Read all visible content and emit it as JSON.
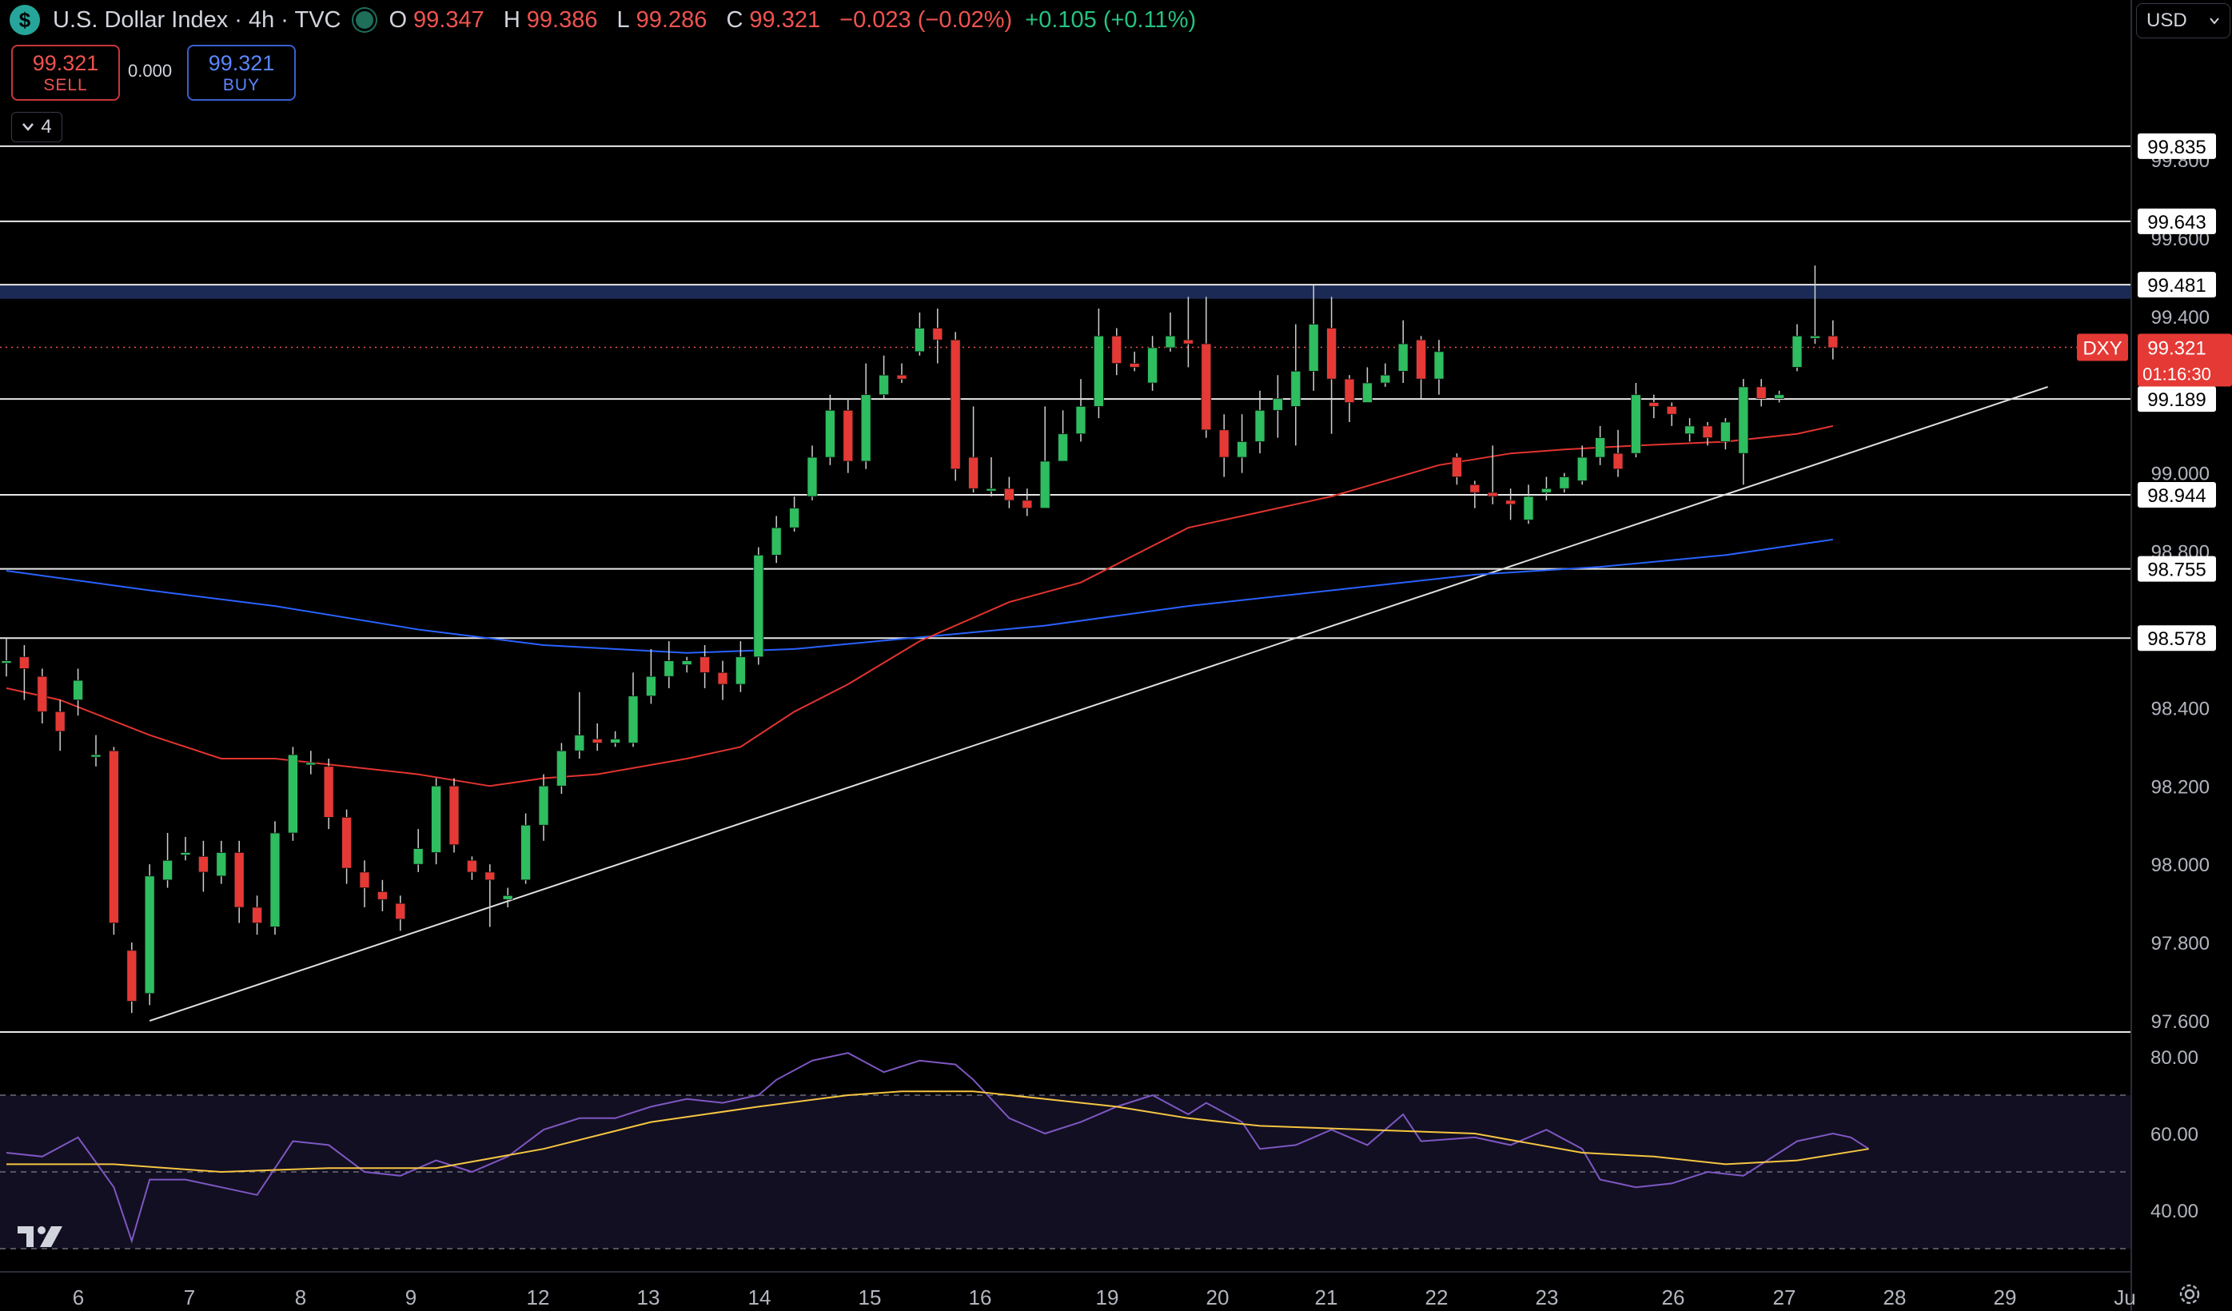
{
  "header": {
    "logo_symbol": "$",
    "title": "U.S. Dollar Index · 4h · TVC",
    "open_label": "O",
    "open": "99.347",
    "high_label": "H",
    "high": "99.386",
    "low_label": "L",
    "low": "99.286",
    "close_label": "C",
    "close": "99.321",
    "change": "−0.023 (−0.02%)",
    "change2": "+0.105 (+0.11%)"
  },
  "trade": {
    "sell_price": "99.321",
    "sell_label": "SELL",
    "spread": "0.000",
    "buy_price": "99.321",
    "buy_label": "BUY"
  },
  "indicators_toggle": {
    "count": "4"
  },
  "currency_select": {
    "value": "USD"
  },
  "price_axis": {
    "ticks": [
      "99.800",
      "99.600",
      "99.400",
      "99.000",
      "98.800",
      "98.400",
      "98.200",
      "98.000",
      "97.800",
      "97.600"
    ],
    "horizontal_line_labels": [
      "99.835",
      "99.643",
      "99.481",
      "99.189",
      "98.944",
      "98.755",
      "98.578"
    ],
    "symbol_tag": "DXY",
    "current_price": "99.321",
    "countdown": "01:16:30"
  },
  "rsi_axis": {
    "ticks": [
      "80.00",
      "60.00",
      "40.00"
    ]
  },
  "time_axis": {
    "labels": [
      "6",
      "7",
      "8",
      "9",
      "12",
      "13",
      "14",
      "15",
      "16",
      "19",
      "20",
      "21",
      "22",
      "23",
      "26",
      "27",
      "28",
      "29",
      "Ju"
    ]
  },
  "colors": {
    "up": "#26a69a",
    "down": "#ef5350",
    "ma_fast": "#e3342f",
    "ma_slow": "#2962ff",
    "rsi": "#7e57c2",
    "rsi_ma": "#f5c542",
    "zone": "#1b2a55"
  },
  "chart_data": {
    "type": "candlestick",
    "price_range": [
      97.6,
      99.9
    ],
    "rsi_range": [
      30,
      85
    ],
    "horizontal_levels": [
      99.835,
      99.643,
      99.481,
      99.189,
      98.944,
      98.755,
      98.578
    ],
    "resistance_zone": [
      99.445,
      99.481
    ],
    "current_price": 99.321,
    "candles": [
      [
        98.52,
        98.52,
        98.58,
        98.48
      ],
      [
        98.53,
        98.5,
        98.56,
        98.42
      ],
      [
        98.48,
        98.39,
        98.5,
        98.36
      ],
      [
        98.39,
        98.34,
        98.42,
        98.29
      ],
      [
        98.42,
        98.47,
        98.5,
        98.38
      ],
      [
        98.28,
        98.28,
        98.33,
        98.25
      ],
      [
        98.29,
        97.85,
        98.3,
        97.82
      ],
      [
        97.78,
        97.65,
        97.8,
        97.62
      ],
      [
        97.67,
        97.97,
        98.0,
        97.64
      ],
      [
        97.96,
        98.01,
        98.08,
        97.94
      ],
      [
        98.03,
        98.03,
        98.07,
        98.01
      ],
      [
        98.02,
        97.98,
        98.06,
        97.93
      ],
      [
        97.97,
        98.03,
        98.06,
        97.95
      ],
      [
        98.03,
        97.89,
        98.06,
        97.85
      ],
      [
        97.89,
        97.85,
        97.92,
        97.82
      ],
      [
        97.84,
        98.08,
        98.11,
        97.82
      ],
      [
        98.08,
        98.28,
        98.3,
        98.06
      ],
      [
        98.26,
        98.26,
        98.29,
        98.23
      ],
      [
        98.25,
        98.12,
        98.27,
        98.09
      ],
      [
        98.12,
        97.99,
        98.14,
        97.95
      ],
      [
        97.98,
        97.94,
        98.01,
        97.89
      ],
      [
        97.93,
        97.91,
        97.96,
        97.88
      ],
      [
        97.9,
        97.86,
        97.92,
        97.83
      ],
      [
        98.0,
        98.04,
        98.09,
        97.98
      ],
      [
        98.03,
        98.2,
        98.22,
        98.0
      ],
      [
        98.2,
        98.05,
        98.22,
        98.03
      ],
      [
        98.01,
        97.98,
        98.02,
        97.96
      ],
      [
        97.98,
        97.96,
        98.0,
        97.84
      ],
      [
        97.91,
        97.92,
        97.94,
        97.89
      ],
      [
        97.96,
        98.1,
        98.13,
        97.95
      ],
      [
        98.1,
        98.2,
        98.23,
        98.06
      ],
      [
        98.2,
        98.29,
        98.31,
        98.18
      ],
      [
        98.29,
        98.33,
        98.44,
        98.27
      ],
      [
        98.32,
        98.31,
        98.36,
        98.29
      ],
      [
        98.31,
        98.32,
        98.34,
        98.3
      ],
      [
        98.31,
        98.43,
        98.49,
        98.3
      ],
      [
        98.43,
        98.48,
        98.55,
        98.41
      ],
      [
        98.48,
        98.52,
        98.57,
        98.45
      ],
      [
        98.51,
        98.52,
        98.53,
        98.49
      ],
      [
        98.53,
        98.49,
        98.56,
        98.45
      ],
      [
        98.49,
        98.46,
        98.52,
        98.42
      ],
      [
        98.46,
        98.53,
        98.57,
        98.44
      ],
      [
        98.53,
        98.79,
        98.81,
        98.51
      ],
      [
        98.79,
        98.86,
        98.89,
        98.77
      ],
      [
        98.86,
        98.91,
        98.94,
        98.85
      ],
      [
        98.94,
        99.04,
        99.07,
        98.93
      ],
      [
        99.04,
        99.16,
        99.2,
        99.02
      ],
      [
        99.16,
        99.03,
        99.19,
        99.0
      ],
      [
        99.03,
        99.2,
        99.28,
        99.01
      ],
      [
        99.2,
        99.25,
        99.3,
        99.19
      ],
      [
        99.25,
        99.24,
        99.28,
        99.23
      ],
      [
        99.31,
        99.37,
        99.41,
        99.3
      ],
      [
        99.37,
        99.34,
        99.42,
        99.28
      ],
      [
        99.34,
        99.01,
        99.36,
        98.98
      ],
      [
        99.04,
        98.96,
        99.17,
        98.95
      ],
      [
        98.96,
        98.96,
        99.04,
        98.94
      ],
      [
        98.96,
        98.93,
        98.99,
        98.91
      ],
      [
        98.93,
        98.91,
        98.96,
        98.89
      ],
      [
        98.91,
        99.03,
        99.17,
        98.93
      ],
      [
        99.03,
        99.1,
        99.16,
        99.04
      ],
      [
        99.1,
        99.17,
        99.24,
        99.08
      ],
      [
        99.17,
        99.35,
        99.42,
        99.14
      ],
      [
        99.35,
        99.28,
        99.37,
        99.25
      ],
      [
        99.28,
        99.27,
        99.31,
        99.26
      ],
      [
        99.23,
        99.32,
        99.35,
        99.21
      ],
      [
        99.32,
        99.35,
        99.41,
        99.31
      ],
      [
        99.34,
        99.33,
        99.45,
        99.27
      ],
      [
        99.33,
        99.11,
        99.45,
        99.09
      ],
      [
        99.11,
        99.04,
        99.15,
        98.99
      ],
      [
        99.04,
        99.08,
        99.15,
        99.0
      ],
      [
        99.08,
        99.16,
        99.21,
        99.05
      ],
      [
        99.16,
        99.19,
        99.25,
        99.09
      ],
      [
        99.17,
        99.26,
        99.38,
        99.07
      ],
      [
        99.26,
        99.38,
        99.48,
        99.21
      ],
      [
        99.37,
        99.24,
        99.45,
        99.1
      ],
      [
        99.24,
        99.18,
        99.25,
        99.13
      ],
      [
        99.18,
        99.23,
        99.27,
        99.2
      ],
      [
        99.23,
        99.25,
        99.28,
        99.22
      ],
      [
        99.26,
        99.33,
        99.39,
        99.23
      ],
      [
        99.34,
        99.24,
        99.35,
        99.19
      ],
      [
        99.24,
        99.31,
        99.34,
        99.2
      ],
      [
        99.04,
        98.99,
        99.05,
        98.97
      ],
      [
        98.97,
        98.95,
        98.98,
        98.91
      ],
      [
        98.95,
        98.94,
        99.07,
        98.92
      ],
      [
        98.93,
        98.92,
        98.96,
        98.88
      ],
      [
        98.88,
        98.94,
        98.97,
        98.87
      ],
      [
        98.95,
        98.96,
        98.99,
        98.93
      ],
      [
        98.96,
        98.99,
        99.0,
        98.95
      ],
      [
        98.98,
        99.04,
        99.07,
        98.97
      ],
      [
        99.04,
        99.09,
        99.12,
        99.02
      ],
      [
        99.05,
        99.01,
        99.11,
        98.99
      ],
      [
        99.05,
        99.2,
        99.23,
        99.04
      ],
      [
        99.18,
        99.17,
        99.2,
        99.14
      ],
      [
        99.17,
        99.15,
        99.18,
        99.12
      ],
      [
        99.1,
        99.12,
        99.14,
        99.08
      ],
      [
        99.12,
        99.09,
        99.13,
        99.07
      ],
      [
        99.08,
        99.13,
        99.14,
        99.06
      ],
      [
        99.05,
        99.22,
        99.24,
        98.97
      ],
      [
        99.22,
        99.19,
        99.24,
        99.17
      ],
      [
        99.19,
        99.2,
        99.21,
        99.18
      ],
      [
        99.27,
        99.35,
        99.38,
        99.26
      ],
      [
        99.35,
        99.35,
        99.53,
        99.33
      ],
      [
        99.35,
        99.32,
        99.39,
        99.29
      ]
    ],
    "sma_fast": [
      [
        0,
        98.45
      ],
      [
        3,
        98.42
      ],
      [
        8,
        98.33
      ],
      [
        12,
        98.27
      ],
      [
        15,
        98.27
      ],
      [
        19,
        98.25
      ],
      [
        23,
        98.23
      ],
      [
        27,
        98.2
      ],
      [
        30,
        98.22
      ],
      [
        33,
        98.23
      ],
      [
        38,
        98.27
      ],
      [
        41,
        98.3
      ],
      [
        44,
        98.39
      ],
      [
        47,
        98.46
      ],
      [
        51,
        98.57
      ],
      [
        56,
        98.67
      ],
      [
        60,
        98.72
      ],
      [
        63,
        98.79
      ],
      [
        66,
        98.86
      ],
      [
        70,
        98.9
      ],
      [
        74,
        98.94
      ],
      [
        77,
        98.98
      ],
      [
        80,
        99.02
      ],
      [
        84,
        99.05
      ],
      [
        87,
        99.06
      ],
      [
        91,
        99.07
      ],
      [
        96,
        99.08
      ],
      [
        100,
        99.1
      ],
      [
        102,
        99.12
      ]
    ],
    "sma_slow": [
      [
        0,
        98.75
      ],
      [
        8,
        98.7
      ],
      [
        15,
        98.66
      ],
      [
        23,
        98.6
      ],
      [
        30,
        98.56
      ],
      [
        38,
        98.54
      ],
      [
        44,
        98.55
      ],
      [
        51,
        98.58
      ],
      [
        58,
        98.61
      ],
      [
        66,
        98.66
      ],
      [
        74,
        98.7
      ],
      [
        82,
        98.74
      ],
      [
        89,
        98.76
      ],
      [
        96,
        98.79
      ],
      [
        102,
        98.83
      ]
    ],
    "trendline": {
      "from": [
        8,
        97.6
      ],
      "to": [
        114,
        99.22
      ]
    },
    "rsi": [
      [
        0,
        55
      ],
      [
        2,
        54
      ],
      [
        4,
        59
      ],
      [
        6,
        46
      ],
      [
        7,
        32
      ],
      [
        8,
        48
      ],
      [
        10,
        48
      ],
      [
        12,
        46
      ],
      [
        14,
        44
      ],
      [
        16,
        58
      ],
      [
        18,
        57
      ],
      [
        20,
        50
      ],
      [
        22,
        49
      ],
      [
        24,
        53
      ],
      [
        26,
        50
      ],
      [
        28,
        54
      ],
      [
        30,
        61
      ],
      [
        32,
        64
      ],
      [
        34,
        64
      ],
      [
        36,
        67
      ],
      [
        38,
        69
      ],
      [
        40,
        68
      ],
      [
        42,
        70
      ],
      [
        43,
        74
      ],
      [
        45,
        79
      ],
      [
        47,
        81
      ],
      [
        49,
        76
      ],
      [
        51,
        79
      ],
      [
        53,
        78
      ],
      [
        54,
        74
      ],
      [
        56,
        64
      ],
      [
        58,
        60
      ],
      [
        60,
        63
      ],
      [
        62,
        67
      ],
      [
        64,
        70
      ],
      [
        66,
        65
      ],
      [
        67,
        68
      ],
      [
        69,
        63
      ],
      [
        70,
        56
      ],
      [
        72,
        57
      ],
      [
        74,
        61
      ],
      [
        76,
        57
      ],
      [
        78,
        65
      ],
      [
        79,
        58
      ],
      [
        82,
        59
      ],
      [
        84,
        57
      ],
      [
        86,
        61
      ],
      [
        88,
        56
      ],
      [
        89,
        48
      ],
      [
        91,
        46
      ],
      [
        93,
        47
      ],
      [
        95,
        50
      ],
      [
        97,
        49
      ],
      [
        100,
        58
      ],
      [
        102,
        60
      ],
      [
        103,
        59
      ],
      [
        104,
        56
      ]
    ],
    "rsi_ma": [
      [
        0,
        52
      ],
      [
        6,
        52
      ],
      [
        12,
        50
      ],
      [
        18,
        51
      ],
      [
        24,
        51
      ],
      [
        30,
        56
      ],
      [
        36,
        63
      ],
      [
        42,
        67
      ],
      [
        47,
        70
      ],
      [
        50,
        71
      ],
      [
        54,
        71
      ],
      [
        58,
        69
      ],
      [
        62,
        67
      ],
      [
        66,
        64
      ],
      [
        70,
        62
      ],
      [
        76,
        61
      ],
      [
        82,
        60
      ],
      [
        88,
        55
      ],
      [
        92,
        54
      ],
      [
        96,
        52
      ],
      [
        100,
        53
      ],
      [
        104,
        56
      ]
    ],
    "rsi_bands": [
      70,
      50,
      30
    ]
  }
}
